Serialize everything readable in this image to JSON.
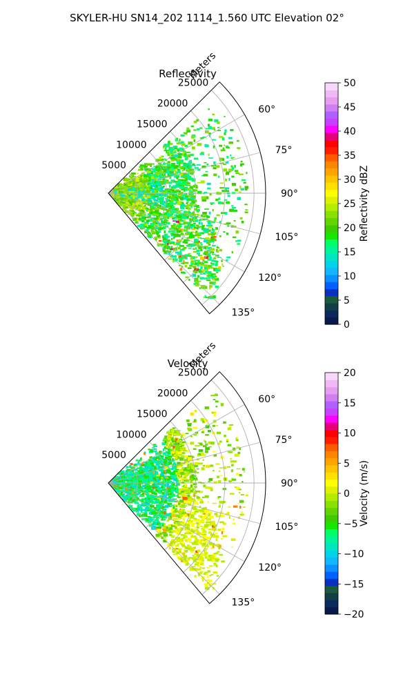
{
  "figure": {
    "suptitle": "SKYLER-HU  SN14_202  1114_1.560 UTC Elevation 02°"
  },
  "chart_data": [
    {
      "type": "polar-sector",
      "title": "Reflectivity",
      "range_label": "Meters",
      "theta_range_deg": [
        45,
        140
      ],
      "r_max": 27000,
      "r_ticks": [
        5000,
        10000,
        15000,
        20000,
        25000
      ],
      "r_tick_labels": [
        "5000",
        "10000",
        "15000",
        "20000",
        "25000"
      ],
      "theta_ticks": [
        60,
        75,
        90,
        105,
        120,
        135
      ],
      "theta_tick_labels": [
        "60°",
        "75°",
        "90°",
        "105°",
        "120°",
        "135°"
      ],
      "grid": true,
      "colorbar": {
        "label": "Reflectivity dBZ",
        "vmin": 0,
        "vmax": 50,
        "ticks": [
          0,
          5,
          10,
          15,
          20,
          25,
          30,
          35,
          40,
          45,
          50
        ],
        "tick_labels": [
          "0",
          "5",
          "10",
          "15",
          "20",
          "25",
          "30",
          "35",
          "40",
          "45",
          "50"
        ],
        "colors": [
          "#071a4a",
          "#0a2a5c",
          "#123e46",
          "#1b5a3a",
          "#0b2fbf",
          "#0060ff",
          "#0a90ff",
          "#12b8ff",
          "#00d4e6",
          "#00e6c0",
          "#00f59a",
          "#00ff66",
          "#19e600",
          "#3ccc00",
          "#62d400",
          "#8ae000",
          "#b4ec00",
          "#dcf000",
          "#ffff00",
          "#ffe000",
          "#ffc400",
          "#ffa400",
          "#ff8400",
          "#ff5a00",
          "#ff1e00",
          "#ff0000",
          "#e6007a",
          "#ff00ff",
          "#c840ff",
          "#b060ff",
          "#d07ef0",
          "#e89ef0",
          "#f0b8f4",
          "#f8d8fa"
        ]
      }
    },
    {
      "type": "polar-sector",
      "title": "Velocity",
      "range_label": "Meters",
      "theta_range_deg": [
        45,
        140
      ],
      "r_max": 27000,
      "r_ticks": [
        5000,
        10000,
        15000,
        20000,
        25000
      ],
      "r_tick_labels": [
        "5000",
        "10000",
        "15000",
        "20000",
        "25000"
      ],
      "theta_ticks": [
        60,
        75,
        90,
        105,
        120,
        135
      ],
      "theta_tick_labels": [
        "60°",
        "75°",
        "90°",
        "105°",
        "120°",
        "135°"
      ],
      "grid": true,
      "colorbar": {
        "label": "Velocity (m/s)",
        "vmin": -20,
        "vmax": 20,
        "ticks": [
          -20,
          -15,
          -10,
          -5,
          0,
          5,
          10,
          15,
          20
        ],
        "tick_labels": [
          "−20",
          "−15",
          "−10",
          "−5",
          "0",
          "5",
          "10",
          "15",
          "20"
        ],
        "colors": [
          "#071a4a",
          "#0a2a5c",
          "#123e46",
          "#1b5a3a",
          "#0b2fbf",
          "#0060ff",
          "#0a90ff",
          "#12b8ff",
          "#00d4e6",
          "#00e6c0",
          "#00f59a",
          "#00ff66",
          "#19e600",
          "#3ccc00",
          "#62d400",
          "#8ae000",
          "#b4ec00",
          "#dcf000",
          "#ffff00",
          "#ffe000",
          "#ffc400",
          "#ffa400",
          "#ff8400",
          "#ff5a00",
          "#ff1e00",
          "#ff0000",
          "#e6007a",
          "#ff00ff",
          "#c840ff",
          "#b060ff",
          "#d07ef0",
          "#e89ef0",
          "#f0b8f4",
          "#f8d8fa"
        ]
      }
    }
  ]
}
